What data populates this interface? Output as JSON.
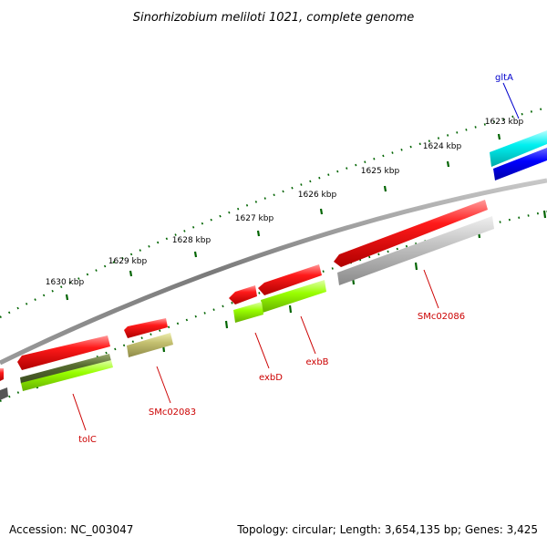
{
  "title": "Sinorhizobium meliloti 1021, complete genome",
  "ruler": {
    "unit": "kbp",
    "ticks": [
      {
        "kbp": 1623,
        "label": "1623 kbp"
      },
      {
        "kbp": 1624,
        "label": "1624 kbp"
      },
      {
        "kbp": 1625,
        "label": "1625 kbp"
      },
      {
        "kbp": 1626,
        "label": "1626 kbp"
      },
      {
        "kbp": 1627,
        "label": "1627 kbp"
      },
      {
        "kbp": 1628,
        "label": "1628 kbp"
      },
      {
        "kbp": 1629,
        "label": "1629 kbp"
      },
      {
        "kbp": 1630,
        "label": "1630 kbp"
      }
    ]
  },
  "genes": [
    {
      "name": "gltA",
      "label_color": "#0000cc",
      "strand": "outer"
    },
    {
      "name": "SMc02086",
      "label_color": "#cc0000",
      "strand": "inner"
    },
    {
      "name": "exbB",
      "label_color": "#cc0000",
      "strand": "inner"
    },
    {
      "name": "exbD",
      "label_color": "#cc0000",
      "strand": "inner"
    },
    {
      "name": "SMc02083",
      "label_color": "#cc0000",
      "strand": "inner"
    },
    {
      "name": "tolC",
      "label_color": "#cc0000",
      "strand": "inner"
    }
  ],
  "colors": {
    "cds": "#ff0000",
    "backbone": "#777777",
    "ticks": "#006400",
    "cyan_feature": "#00e5e5",
    "blue_feature": "#0000ff",
    "lime_feature": "#99ff00",
    "olive_feature": "#cccc66",
    "grey_feature": "#bbbbbb",
    "dark_green_feature": "#556b2f"
  },
  "footer": {
    "accession": "Accession: NC_003047",
    "summary": "Topology: circular; Length: 3,654,135 bp; Genes: 3,425"
  }
}
